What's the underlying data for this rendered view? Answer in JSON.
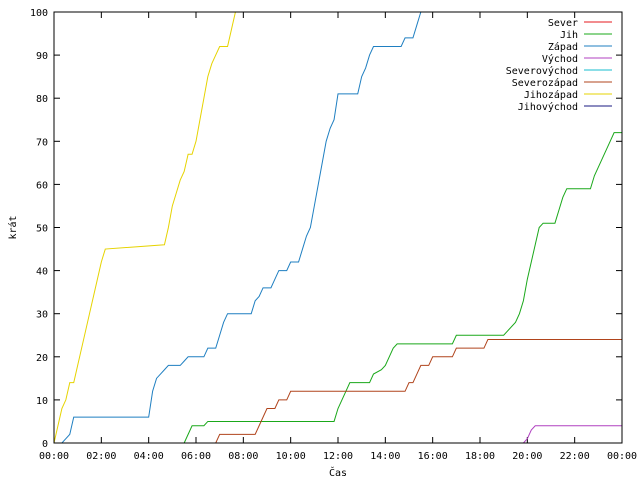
{
  "chart_data": {
    "type": "line",
    "line_style": "step",
    "xlabel": "Čas",
    "ylabel": "krát",
    "xlim": [
      "00:00",
      "24:00"
    ],
    "ylim": [
      0,
      100
    ],
    "x_ticks": [
      "00:00",
      "02:00",
      "04:00",
      "06:00",
      "08:00",
      "10:00",
      "12:00",
      "14:00",
      "16:00",
      "18:00",
      "20:00",
      "22:00",
      "00:00"
    ],
    "y_ticks": [
      "0",
      "10",
      "20",
      "30",
      "40",
      "50",
      "60",
      "70",
      "80",
      "90",
      "100"
    ],
    "grid": false,
    "legend_position": "top-right",
    "series": [
      {
        "name": "Sever",
        "color": "#e41a1c",
        "points": []
      },
      {
        "name": "Jih",
        "color": "#1aa81a",
        "points": [
          [
            "00:00",
            0
          ],
          [
            "05:30",
            0
          ],
          [
            "05:40",
            2
          ],
          [
            "05:50",
            4
          ],
          [
            "06:20",
            4
          ],
          [
            "06:30",
            5
          ],
          [
            "11:50",
            5
          ],
          [
            "12:00",
            8
          ],
          [
            "12:10",
            10
          ],
          [
            "12:20",
            12
          ],
          [
            "12:30",
            14
          ],
          [
            "13:20",
            14
          ],
          [
            "13:30",
            16
          ],
          [
            "13:50",
            17
          ],
          [
            "14:00",
            18
          ],
          [
            "14:10",
            20
          ],
          [
            "14:20",
            22
          ],
          [
            "14:30",
            23
          ],
          [
            "16:50",
            23
          ],
          [
            "17:00",
            25
          ],
          [
            "19:00",
            25
          ],
          [
            "19:10",
            26
          ],
          [
            "19:30",
            28
          ],
          [
            "19:40",
            30
          ],
          [
            "19:50",
            33
          ],
          [
            "20:00",
            38
          ],
          [
            "20:10",
            42
          ],
          [
            "20:20",
            46
          ],
          [
            "20:30",
            50
          ],
          [
            "20:40",
            51
          ],
          [
            "21:10",
            51
          ],
          [
            "21:20",
            54
          ],
          [
            "21:30",
            57
          ],
          [
            "21:40",
            59
          ],
          [
            "22:40",
            59
          ],
          [
            "22:50",
            62
          ],
          [
            "23:00",
            64
          ],
          [
            "23:10",
            66
          ],
          [
            "23:20",
            68
          ],
          [
            "23:30",
            70
          ],
          [
            "23:40",
            72
          ],
          [
            "24:00",
            72
          ]
        ]
      },
      {
        "name": "Západ",
        "color": "#1f7fc1",
        "points": [
          [
            "00:00",
            0
          ],
          [
            "00:20",
            0
          ],
          [
            "00:30",
            1
          ],
          [
            "00:40",
            2
          ],
          [
            "00:50",
            6
          ],
          [
            "04:00",
            6
          ],
          [
            "04:10",
            12
          ],
          [
            "04:20",
            15
          ],
          [
            "04:30",
            16
          ],
          [
            "04:40",
            17
          ],
          [
            "04:50",
            18
          ],
          [
            "05:20",
            18
          ],
          [
            "05:30",
            19
          ],
          [
            "05:40",
            20
          ],
          [
            "06:20",
            20
          ],
          [
            "06:30",
            22
          ],
          [
            "06:50",
            22
          ],
          [
            "07:00",
            25
          ],
          [
            "07:10",
            28
          ],
          [
            "07:20",
            30
          ],
          [
            "08:20",
            30
          ],
          [
            "08:30",
            33
          ],
          [
            "08:40",
            34
          ],
          [
            "08:50",
            36
          ],
          [
            "09:10",
            36
          ],
          [
            "09:20",
            38
          ],
          [
            "09:30",
            40
          ],
          [
            "09:50",
            40
          ],
          [
            "10:00",
            42
          ],
          [
            "10:20",
            42
          ],
          [
            "10:30",
            45
          ],
          [
            "10:40",
            48
          ],
          [
            "10:50",
            50
          ],
          [
            "11:00",
            55
          ],
          [
            "11:10",
            60
          ],
          [
            "11:20",
            65
          ],
          [
            "11:30",
            70
          ],
          [
            "11:40",
            73
          ],
          [
            "11:50",
            75
          ],
          [
            "12:00",
            81
          ],
          [
            "12:50",
            81
          ],
          [
            "13:00",
            85
          ],
          [
            "13:10",
            87
          ],
          [
            "13:20",
            90
          ],
          [
            "13:30",
            92
          ],
          [
            "14:40",
            92
          ],
          [
            "14:50",
            94
          ],
          [
            "15:10",
            94
          ],
          [
            "15:20",
            97
          ],
          [
            "15:30",
            100
          ]
        ]
      },
      {
        "name": "Východ",
        "color": "#b040c0",
        "points": [
          [
            "00:00",
            0
          ],
          [
            "19:50",
            0
          ],
          [
            "20:00",
            1
          ],
          [
            "20:10",
            3
          ],
          [
            "20:20",
            4
          ],
          [
            "24:00",
            4
          ]
        ]
      },
      {
        "name": "Severovýchod",
        "color": "#17becf",
        "points": []
      },
      {
        "name": "Severozápad",
        "color": "#b0441c",
        "points": [
          [
            "00:00",
            0
          ],
          [
            "06:50",
            0
          ],
          [
            "07:00",
            2
          ],
          [
            "08:30",
            2
          ],
          [
            "08:40",
            4
          ],
          [
            "08:50",
            6
          ],
          [
            "09:00",
            8
          ],
          [
            "09:20",
            8
          ],
          [
            "09:30",
            10
          ],
          [
            "09:50",
            10
          ],
          [
            "10:00",
            12
          ],
          [
            "14:50",
            12
          ],
          [
            "15:00",
            14
          ],
          [
            "15:10",
            14
          ],
          [
            "15:20",
            16
          ],
          [
            "15:30",
            18
          ],
          [
            "15:50",
            18
          ],
          [
            "16:00",
            20
          ],
          [
            "16:50",
            20
          ],
          [
            "17:00",
            22
          ],
          [
            "18:10",
            22
          ],
          [
            "18:20",
            24
          ],
          [
            "24:00",
            24
          ]
        ]
      },
      {
        "name": "Jihozápad",
        "color": "#e6d300",
        "points": [
          [
            "00:00",
            0
          ],
          [
            "00:10",
            4
          ],
          [
            "00:20",
            8
          ],
          [
            "00:30",
            10
          ],
          [
            "00:40",
            14
          ],
          [
            "00:50",
            14
          ],
          [
            "01:00",
            18
          ],
          [
            "01:10",
            22
          ],
          [
            "01:20",
            26
          ],
          [
            "01:30",
            30
          ],
          [
            "01:40",
            34
          ],
          [
            "01:50",
            38
          ],
          [
            "02:00",
            42
          ],
          [
            "02:10",
            45
          ],
          [
            "04:40",
            46
          ],
          [
            "04:50",
            50
          ],
          [
            "05:00",
            55
          ],
          [
            "05:10",
            58
          ],
          [
            "05:20",
            61
          ],
          [
            "05:30",
            63
          ],
          [
            "05:40",
            67
          ],
          [
            "05:50",
            67
          ],
          [
            "06:00",
            70
          ],
          [
            "06:10",
            75
          ],
          [
            "06:20",
            80
          ],
          [
            "06:30",
            85
          ],
          [
            "06:40",
            88
          ],
          [
            "06:50",
            90
          ],
          [
            "07:00",
            92
          ],
          [
            "07:20",
            92
          ],
          [
            "07:30",
            96
          ],
          [
            "07:40",
            100
          ]
        ]
      },
      {
        "name": "Jihovýchod",
        "color": "#1a1a80",
        "points": []
      }
    ]
  }
}
